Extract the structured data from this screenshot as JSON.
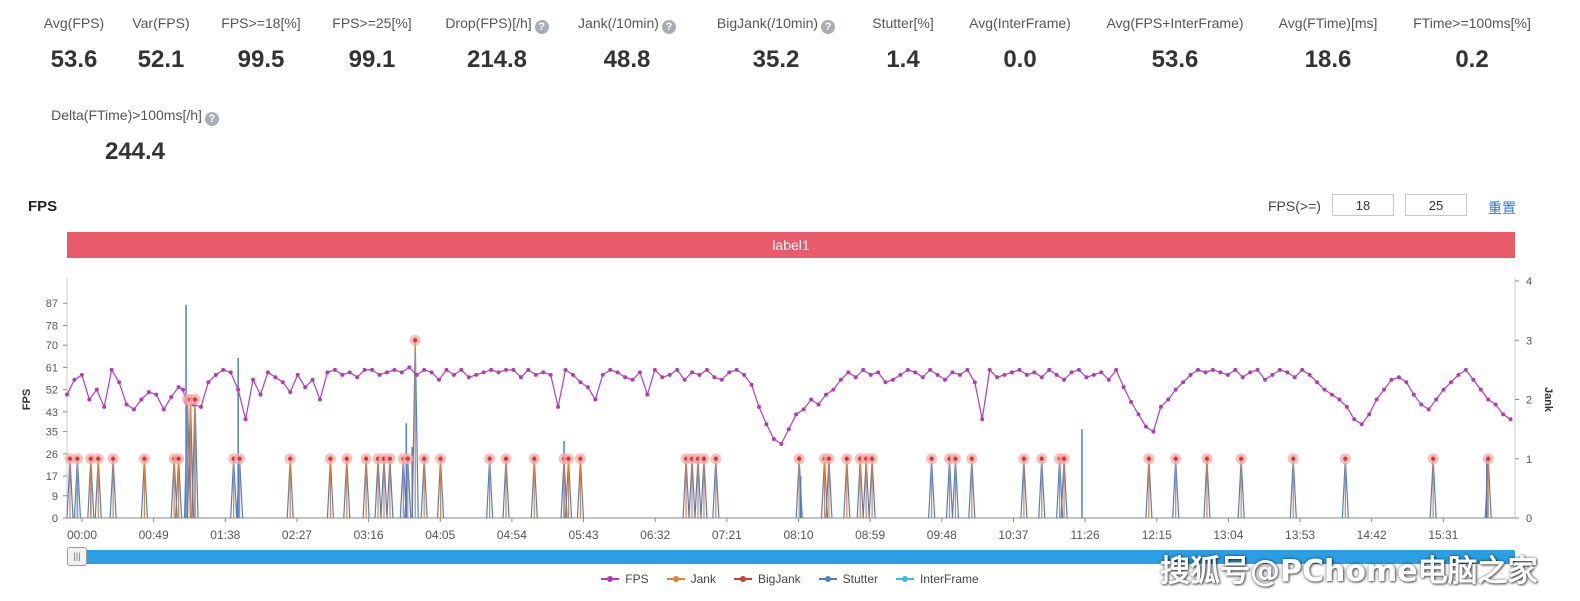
{
  "stats": [
    {
      "label": "Avg(FPS)",
      "value": "53.6",
      "help": false
    },
    {
      "label": "Var(FPS)",
      "value": "52.1",
      "help": false
    },
    {
      "label": "FPS>=18[%]",
      "value": "99.5",
      "help": false
    },
    {
      "label": "FPS>=25[%]",
      "value": "99.1",
      "help": false
    },
    {
      "label": "Drop(FPS)[/h]",
      "value": "214.8",
      "help": true
    },
    {
      "label": "Jank(/10min)",
      "value": "48.8",
      "help": true
    },
    {
      "label": "BigJank(/10min)",
      "value": "35.2",
      "help": true
    },
    {
      "label": "Stutter[%]",
      "value": "1.4",
      "help": false
    },
    {
      "label": "Avg(InterFrame)",
      "value": "0.0",
      "help": false
    },
    {
      "label": "Avg(FPS+InterFrame)",
      "value": "53.6",
      "help": false
    },
    {
      "label": "Avg(FTime)[ms]",
      "value": "18.6",
      "help": false
    },
    {
      "label": "FTime>=100ms[%]",
      "value": "0.2",
      "help": false
    },
    {
      "label": "Delta(FTime)>100ms[/h]",
      "value": "244.4",
      "help": true
    }
  ],
  "chart_title": "FPS",
  "fps_threshold": {
    "label": "FPS(>=)",
    "value1": "18",
    "value2": "25",
    "reset": "重置"
  },
  "label_bar": "label1",
  "watermark": "搜狐号@PChome电脑之家",
  "colors": {
    "fps": "#b23cb5",
    "jank": "#e8812f",
    "bigjank": "#d63a35",
    "stutter": "#4f7fc6",
    "interframe": "#34c0dc",
    "label_bar": "#e95a6a",
    "slider": "#2b9fe6"
  },
  "chart_data": {
    "type": "line",
    "title": "FPS",
    "ylabel": "FPS",
    "y2label": "Jank",
    "ylim": [
      0,
      96
    ],
    "y_ticks": [
      0,
      9,
      17,
      26,
      35,
      43,
      52,
      61,
      70,
      78,
      87
    ],
    "y2lim": [
      0,
      4
    ],
    "y2_ticks": [
      0,
      1,
      2,
      3,
      4
    ],
    "xlim_seconds": [
      0,
      973
    ],
    "x_tick_labels": [
      "00:00",
      "00:49",
      "01:38",
      "02:27",
      "03:16",
      "04:05",
      "04:54",
      "05:43",
      "06:32",
      "07:21",
      "08:10",
      "08:59",
      "09:48",
      "10:37",
      "11:26",
      "12:15",
      "13:04",
      "13:53",
      "14:42",
      "15:31"
    ],
    "legend": [
      "FPS",
      "Jank",
      "BigJank",
      "Stutter",
      "InterFrame"
    ],
    "legend_position": "bottom",
    "series": [
      {
        "name": "FPS",
        "axis": "left",
        "times_s": [
          0,
          5,
          10,
          15,
          20,
          25,
          30,
          35,
          40,
          45,
          50,
          55,
          60,
          65,
          70,
          75,
          78,
          80,
          82,
          85,
          90,
          95,
          100,
          105,
          110,
          115,
          120,
          125,
          130,
          135,
          140,
          145,
          150,
          155,
          160,
          165,
          170,
          175,
          180,
          185,
          190,
          195,
          200,
          205,
          210,
          215,
          220,
          225,
          230,
          235,
          240,
          245,
          250,
          255,
          260,
          265,
          270,
          275,
          280,
          285,
          290,
          295,
          300,
          305,
          310,
          315,
          320,
          325,
          330,
          335,
          340,
          345,
          350,
          355,
          360,
          365,
          370,
          375,
          380,
          385,
          390,
          395,
          400,
          405,
          410,
          415,
          420,
          425,
          430,
          435,
          440,
          445,
          450,
          455,
          460,
          465,
          470,
          475,
          480,
          485,
          490,
          495,
          500,
          505,
          510,
          515,
          520,
          525,
          530,
          535,
          540,
          545,
          550,
          555,
          560,
          565,
          570,
          575,
          580,
          585,
          590,
          595,
          600,
          605,
          610,
          615,
          620,
          625,
          630,
          635,
          640,
          645,
          650,
          655,
          660,
          665,
          670,
          675,
          680,
          685,
          690,
          695,
          700,
          705,
          710,
          715,
          720,
          725,
          730,
          735,
          740,
          745,
          750,
          755,
          760,
          765,
          770,
          775,
          780,
          785,
          790,
          795,
          800,
          805,
          810,
          815,
          820,
          825,
          830,
          835,
          840,
          845,
          850,
          855,
          860,
          865,
          870,
          875,
          880,
          885,
          890,
          895,
          900,
          905,
          910,
          915,
          920,
          925,
          930,
          935,
          940,
          945,
          950,
          955,
          960,
          965,
          970
        ],
        "values": [
          50,
          56,
          58,
          48,
          52,
          45,
          60,
          55,
          46,
          44,
          48,
          51,
          50,
          44,
          49,
          53,
          52,
          47,
          48,
          46,
          45,
          55,
          58,
          60,
          59,
          52,
          40,
          56,
          50,
          59,
          57,
          55,
          51,
          58,
          53,
          56,
          48,
          59,
          60,
          58,
          59,
          57,
          60,
          60,
          58,
          59,
          60,
          59,
          61,
          58,
          60,
          59,
          56,
          60,
          58,
          60,
          57,
          58,
          59,
          60,
          59,
          60,
          60,
          57,
          60,
          58,
          59,
          58,
          45,
          60,
          58,
          55,
          53,
          48,
          58,
          60,
          59,
          57,
          56,
          59,
          50,
          60,
          57,
          58,
          60,
          56,
          59,
          58,
          60,
          57,
          56,
          59,
          60,
          58,
          54,
          45,
          38,
          32,
          30,
          36,
          42,
          44,
          48,
          46,
          50,
          52,
          56,
          59,
          57,
          60,
          58,
          59,
          55,
          56,
          58,
          60,
          59,
          57,
          60,
          58,
          56,
          59,
          58,
          60,
          55,
          40,
          60,
          57,
          58,
          59,
          60,
          58,
          59,
          57,
          60,
          58,
          56,
          59,
          60,
          57,
          58,
          59,
          56,
          60,
          53,
          47,
          42,
          37,
          35,
          45,
          48,
          52,
          55,
          58,
          60,
          59,
          60,
          59,
          58,
          60,
          57,
          59,
          60,
          56,
          58,
          60,
          59,
          57,
          60,
          58,
          55,
          52,
          50,
          48,
          45,
          40,
          38,
          42,
          48,
          52,
          56,
          57,
          55,
          50,
          46,
          44,
          48,
          52,
          55,
          58,
          60,
          56,
          52,
          48,
          46,
          42,
          40,
          44,
          52,
          55,
          57,
          58,
          60,
          58
        ]
      },
      {
        "name": "Jank",
        "axis": "right",
        "events": [
          {
            "t": 2,
            "v": 1
          },
          {
            "t": 7,
            "v": 1
          },
          {
            "t": 16,
            "v": 1
          },
          {
            "t": 21,
            "v": 1
          },
          {
            "t": 31,
            "v": 1
          },
          {
            "t": 52,
            "v": 1
          },
          {
            "t": 72,
            "v": 1
          },
          {
            "t": 75,
            "v": 1
          },
          {
            "t": 81,
            "v": 2
          },
          {
            "t": 83,
            "v": 2
          },
          {
            "t": 86,
            "v": 2
          },
          {
            "t": 112,
            "v": 1
          },
          {
            "t": 116,
            "v": 1
          },
          {
            "t": 150,
            "v": 1
          },
          {
            "t": 177,
            "v": 1
          },
          {
            "t": 188,
            "v": 1
          },
          {
            "t": 201,
            "v": 1
          },
          {
            "t": 209,
            "v": 1
          },
          {
            "t": 213,
            "v": 1
          },
          {
            "t": 217,
            "v": 1
          },
          {
            "t": 226,
            "v": 1
          },
          {
            "t": 229,
            "v": 1
          },
          {
            "t": 234,
            "v": 3
          },
          {
            "t": 240,
            "v": 1
          },
          {
            "t": 251,
            "v": 1
          },
          {
            "t": 284,
            "v": 1
          },
          {
            "t": 295,
            "v": 1
          },
          {
            "t": 314,
            "v": 1
          },
          {
            "t": 334,
            "v": 1
          },
          {
            "t": 337,
            "v": 1
          },
          {
            "t": 345,
            "v": 1
          },
          {
            "t": 416,
            "v": 1
          },
          {
            "t": 420,
            "v": 1
          },
          {
            "t": 424,
            "v": 1
          },
          {
            "t": 428,
            "v": 1
          },
          {
            "t": 436,
            "v": 1
          },
          {
            "t": 492,
            "v": 1
          },
          {
            "t": 509,
            "v": 1
          },
          {
            "t": 512,
            "v": 1
          },
          {
            "t": 524,
            "v": 1
          },
          {
            "t": 533,
            "v": 1
          },
          {
            "t": 537,
            "v": 1
          },
          {
            "t": 541,
            "v": 1
          },
          {
            "t": 581,
            "v": 1
          },
          {
            "t": 593,
            "v": 1
          },
          {
            "t": 597,
            "v": 1
          },
          {
            "t": 608,
            "v": 1
          },
          {
            "t": 643,
            "v": 1
          },
          {
            "t": 655,
            "v": 1
          },
          {
            "t": 667,
            "v": 1
          },
          {
            "t": 670,
            "v": 1
          },
          {
            "t": 727,
            "v": 1
          },
          {
            "t": 745,
            "v": 1
          },
          {
            "t": 766,
            "v": 1
          },
          {
            "t": 789,
            "v": 1
          },
          {
            "t": 824,
            "v": 1
          },
          {
            "t": 859,
            "v": 1
          },
          {
            "t": 918,
            "v": 1
          },
          {
            "t": 955,
            "v": 1
          }
        ]
      },
      {
        "name": "BigJank",
        "axis": "right",
        "events": [
          {
            "t": 81,
            "v": 2
          },
          {
            "t": 83,
            "v": 2
          },
          {
            "t": 86,
            "v": 2
          },
          {
            "t": 234,
            "v": 3
          },
          {
            "t": 334,
            "v": 1
          }
        ]
      },
      {
        "name": "Stutter",
        "axis": "right",
        "events": [
          {
            "t": 7,
            "v": 0.5
          },
          {
            "t": 16,
            "v": 0.5
          },
          {
            "t": 80,
            "v": 3.6
          },
          {
            "t": 83,
            "v": 1.8
          },
          {
            "t": 86,
            "v": 1.4
          },
          {
            "t": 115,
            "v": 2.7
          },
          {
            "t": 228,
            "v": 1.6
          },
          {
            "t": 232,
            "v": 1.2
          },
          {
            "t": 334,
            "v": 1.3
          },
          {
            "t": 493,
            "v": 0.7
          },
          {
            "t": 682,
            "v": 1.5
          },
          {
            "t": 954,
            "v": 1.0
          }
        ]
      },
      {
        "name": "InterFrame",
        "axis": "right",
        "events": []
      }
    ]
  }
}
